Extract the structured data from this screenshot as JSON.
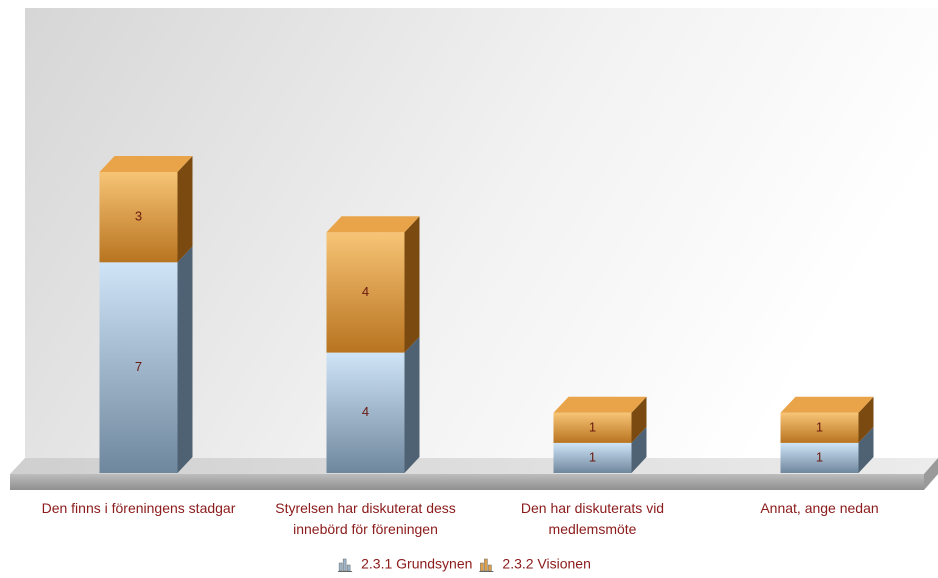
{
  "chart_data": {
    "type": "bar",
    "stacked": true,
    "categories": [
      "Den finns i föreningens stadgar",
      "Styrelsen har diskuterat dess innebörd för föreningen",
      "Den har diskuterats vid medlemsmöte",
      "Annat, ange nedan"
    ],
    "series": [
      {
        "name": "2.3.1 Grundsynen",
        "color": "#9db6cc",
        "values": [
          7,
          4,
          1,
          1
        ]
      },
      {
        "name": "2.3.2 Visionen",
        "color": "#e0a048",
        "values": [
          3,
          4,
          1,
          1
        ]
      }
    ]
  }
}
